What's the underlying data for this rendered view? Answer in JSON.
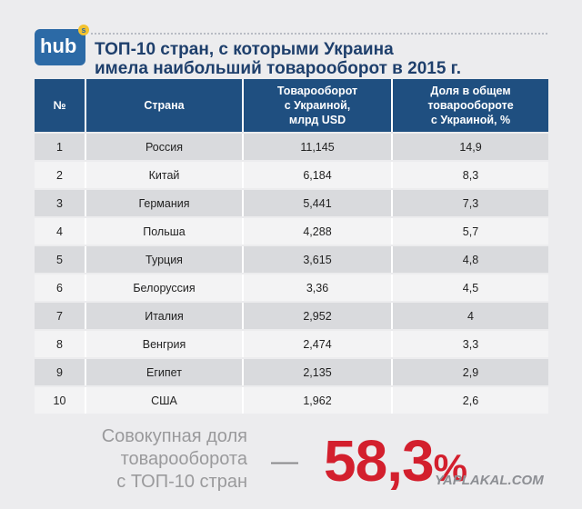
{
  "logo": {
    "text": "hub",
    "sup": "s"
  },
  "header": {
    "title": [
      "ТОП-10 стран, с которыми Украина",
      "имела наибольший товарооборот в 2015 г."
    ]
  },
  "table": {
    "columns": [
      [
        "№"
      ],
      [
        "Страна"
      ],
      [
        "Товарооборот",
        "с Украиной,",
        "млрд USD"
      ],
      [
        "Доля в общем",
        "товарообороте",
        "с Украиной, %"
      ]
    ],
    "rows": [
      [
        "1",
        "Россия",
        "11,145",
        "14,9"
      ],
      [
        "2",
        "Китай",
        "6,184",
        "8,3"
      ],
      [
        "3",
        "Германия",
        "5,441",
        "7,3"
      ],
      [
        "4",
        "Польша",
        "4,288",
        "5,7"
      ],
      [
        "5",
        "Турция",
        "3,615",
        "4,8"
      ],
      [
        "6",
        "Белоруссия",
        "3,36",
        "4,5"
      ],
      [
        "7",
        "Италия",
        "2,952",
        "4"
      ],
      [
        "8",
        "Венгрия",
        "2,474",
        "3,3"
      ],
      [
        "9",
        "Египет",
        "2,135",
        "2,9"
      ],
      [
        "10",
        "США",
        "1,962",
        "2,6"
      ]
    ]
  },
  "summary": {
    "label": [
      "Совокупная доля",
      "товарооборота",
      "с ТОП-10 стран"
    ],
    "dash": "—",
    "value": "58,3",
    "unit": "%"
  },
  "watermark": "YAPLAKAL.COM"
}
